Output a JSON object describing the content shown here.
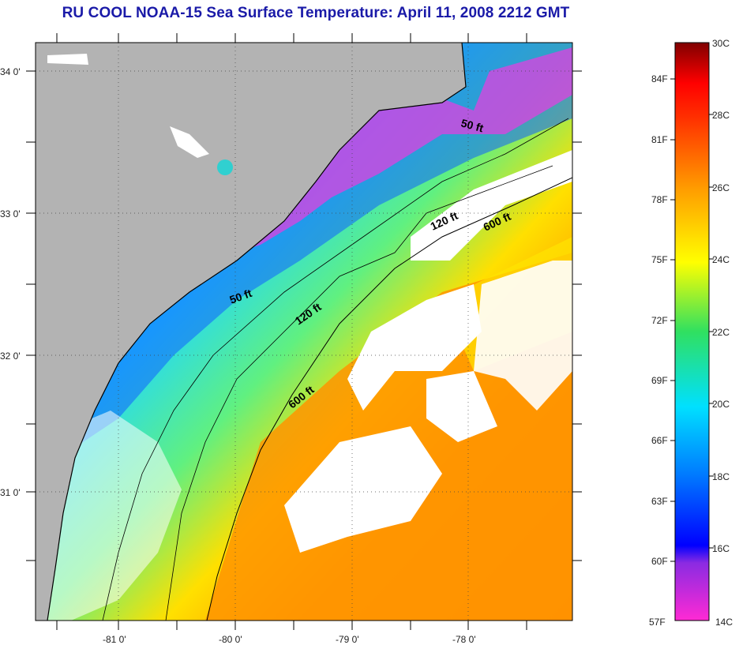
{
  "title": "RU COOL  NOAA-15  Sea Surface Temperature:  April 11, 2008 2212 GMT",
  "latitude_labels": [
    "34 0'",
    "33 0'",
    "32 0'",
    "31 0'"
  ],
  "longitude_labels": [
    "-81 0'",
    "-80 0'",
    "-79 0'",
    "-78 0'"
  ],
  "contour_labels": [
    "50 ft",
    "50 ft",
    "120 ft",
    "120 ft",
    "600 ft",
    "600 ft"
  ],
  "colorbar": {
    "celsius_labels": [
      "30C",
      "28C",
      "26C",
      "24C",
      "22C",
      "20C",
      "18C",
      "16C",
      "14C"
    ],
    "fahrenheit_labels": [
      "84F",
      "81F",
      "78F",
      "75F",
      "72F",
      "69F",
      "66F",
      "63F",
      "60F",
      "57F"
    ]
  },
  "colors": {
    "title": "#1a1aa8",
    "land": "#b3b3b3",
    "cloud": "#ffffff",
    "scale": [
      "#ff2ad4",
      "#8a2be2",
      "#0000ff",
      "#0078ff",
      "#00e0ff",
      "#30e060",
      "#d8f000",
      "#ffff00",
      "#ff9a00",
      "#ff5000",
      "#ff0000",
      "#800000"
    ]
  },
  "legend_min": "14C",
  "legend_max": "30C"
}
